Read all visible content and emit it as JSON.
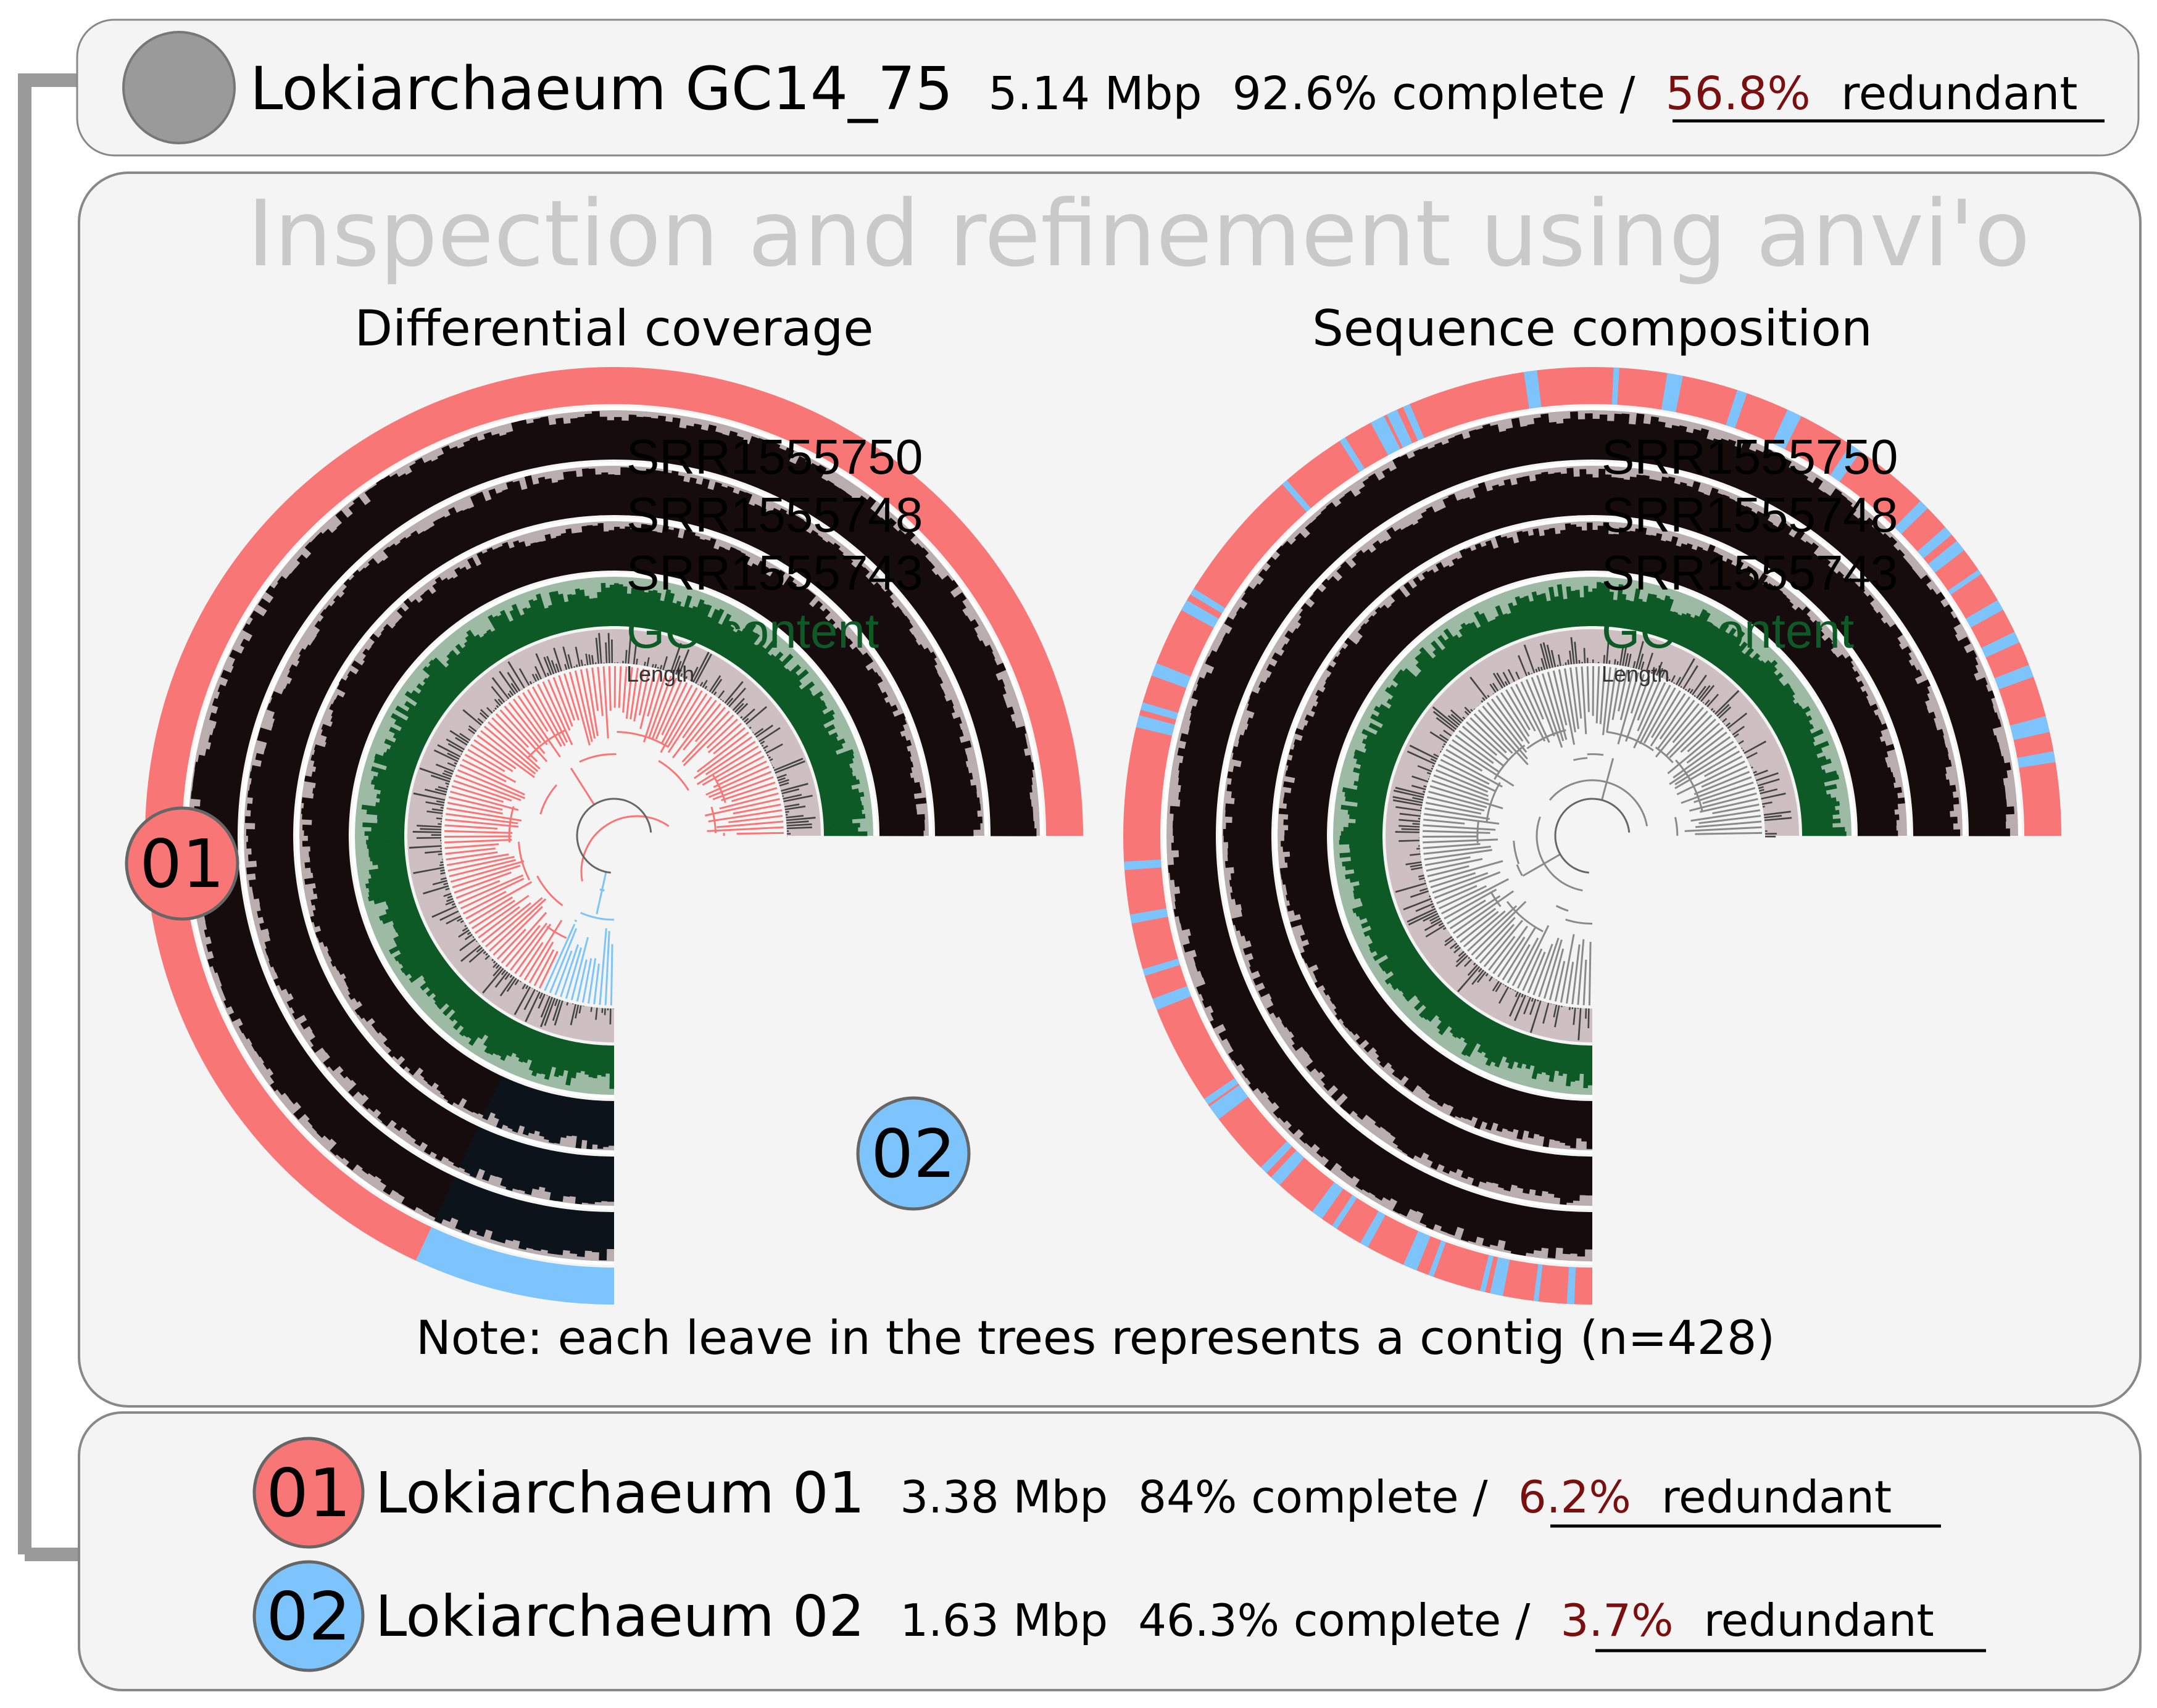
{
  "colors": {
    "bin01": "#f87676",
    "bin02": "#7cc4fb",
    "coverage": "#160b0d",
    "coverage_alt": "#0c131a",
    "gc": "#0d5a26",
    "redundant": "#7a0f0f",
    "parent_node": "#9a9a9a",
    "panel_bg": "#f4f4f4",
    "panel_border": "#888888",
    "connector": "#9a9a9a",
    "heading_gray": "#c9c9c9"
  },
  "header": {
    "name": "Lokiarchaeum GC14_75",
    "size": "5.14 Mbp",
    "complete": "92.6% complete /",
    "redundant_pct": "56.8%",
    "redundant_word": "redundant"
  },
  "inspection": {
    "title": "Inspection and refinement using anvi'o",
    "left_title": "Differential coverage",
    "right_title": "Sequence composition",
    "layers": [
      "SRR1555750",
      "SRR1555748",
      "SRR1555743",
      "GC-content",
      "Length"
    ],
    "badge_01": "01",
    "badge_02": "02",
    "note": "Note: each leave in the trees represents a contig (n=428)"
  },
  "bins": [
    {
      "badge": "01",
      "name": "Lokiarchaeum 01",
      "size": "3.38 Mbp",
      "complete": "84% complete /",
      "redundant_pct": "6.2%",
      "redundant_word": "redundant",
      "color_key": "bin01"
    },
    {
      "badge": "02",
      "name": "Lokiarchaeum 02",
      "size": "1.63 Mbp",
      "complete": "46.3% complete /",
      "redundant_pct": "3.7%",
      "redundant_word": "redundant",
      "color_key": "bin02"
    }
  ]
}
